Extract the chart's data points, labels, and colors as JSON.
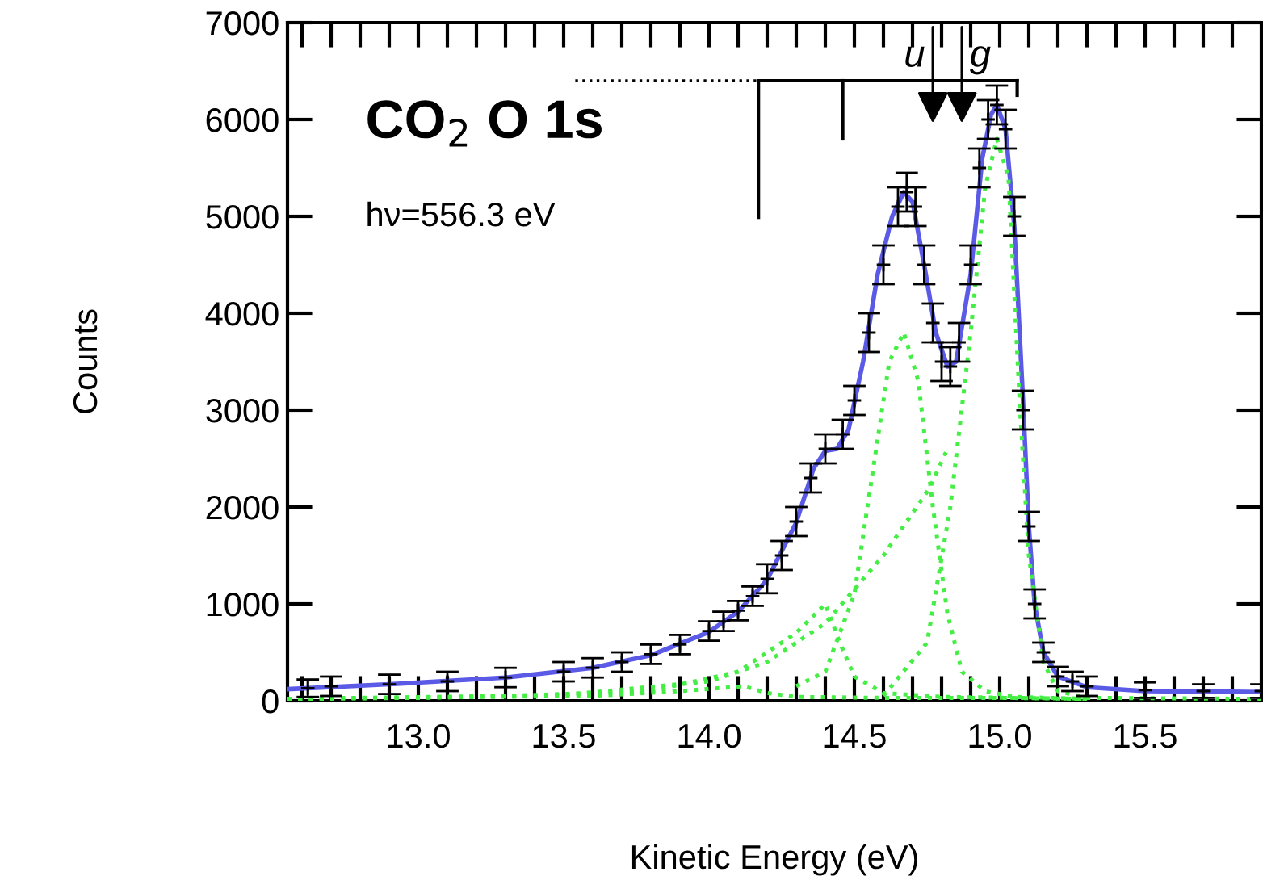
{
  "chart_data": {
    "type": "line",
    "title": "CO$_{2}$ O 1s",
    "xlabel": "Kinetic Energy (eV)",
    "ylabel": "Counts",
    "annotations": [
      "hν=556.3 eV",
      "u",
      "g"
    ],
    "xlim": [
      12.55,
      15.9
    ],
    "ylim": [
      0,
      7000
    ],
    "xticks": [
      {
        "value": 12.6,
        "label": null
      },
      {
        "value": 12.7,
        "label": null
      },
      {
        "value": 12.8,
        "label": null
      },
      {
        "value": 12.9,
        "label": null
      },
      {
        "value": 13.0,
        "label": "13.0"
      },
      {
        "value": 13.1,
        "label": null
      },
      {
        "value": 13.2,
        "label": null
      },
      {
        "value": 13.3,
        "label": null
      },
      {
        "value": 13.4,
        "label": null
      },
      {
        "value": 13.5,
        "label": "13.5"
      },
      {
        "value": 13.6,
        "label": null
      },
      {
        "value": 13.7,
        "label": null
      },
      {
        "value": 13.8,
        "label": null
      },
      {
        "value": 13.9,
        "label": null
      },
      {
        "value": 14.0,
        "label": "14.0"
      },
      {
        "value": 14.1,
        "label": null
      },
      {
        "value": 14.2,
        "label": null
      },
      {
        "value": 14.3,
        "label": null
      },
      {
        "value": 14.4,
        "label": null
      },
      {
        "value": 14.5,
        "label": "14.5"
      },
      {
        "value": 14.6,
        "label": null
      },
      {
        "value": 14.7,
        "label": null
      },
      {
        "value": 14.8,
        "label": null
      },
      {
        "value": 14.9,
        "label": null
      },
      {
        "value": 15.0,
        "label": "15.0"
      },
      {
        "value": 15.1,
        "label": null
      },
      {
        "value": 15.2,
        "label": null
      },
      {
        "value": 15.3,
        "label": null
      },
      {
        "value": 15.4,
        "label": null
      },
      {
        "value": 15.5,
        "label": "15.5"
      },
      {
        "value": 15.6,
        "label": null
      },
      {
        "value": 15.7,
        "label": null
      },
      {
        "value": 15.8,
        "label": null
      }
    ],
    "yticks": [
      0,
      1000,
      2000,
      3000,
      4000,
      5000,
      6000,
      7000
    ],
    "grid": false,
    "legend": false,
    "series": [
      {
        "type": "scatter",
        "marker": "cross",
        "color": "#000000",
        "x": [
          12.62,
          12.7,
          12.9,
          13.1,
          13.3,
          13.5,
          13.6,
          13.7,
          13.8,
          13.9,
          14.0,
          14.05,
          14.1,
          14.15,
          14.2,
          14.25,
          14.3,
          14.35,
          14.4,
          14.46,
          14.5,
          14.55,
          14.6,
          14.65,
          14.68,
          14.71,
          14.74,
          14.77,
          14.8,
          14.83,
          14.86,
          14.9,
          14.93,
          14.96,
          14.99,
          15.02,
          15.05,
          15.08,
          15.1,
          15.12,
          15.15,
          15.2,
          15.25,
          15.3,
          15.5,
          15.7,
          15.9
        ],
        "values": [
          130,
          150,
          170,
          200,
          240,
          300,
          340,
          400,
          480,
          580,
          720,
          820,
          930,
          1080,
          1260,
          1500,
          1850,
          2300,
          2600,
          2750,
          3100,
          3800,
          4500,
          5100,
          5250,
          5100,
          4500,
          3900,
          3500,
          3450,
          3700,
          4500,
          5500,
          6000,
          6150,
          5900,
          5000,
          3000,
          1800,
          1000,
          500,
          250,
          200,
          150,
          110,
          100,
          100
        ],
        "errors": [
          90,
          100,
          100,
          100,
          100,
          100,
          100,
          100,
          100,
          100,
          100,
          100,
          100,
          100,
          150,
          150,
          150,
          150,
          150,
          150,
          150,
          200,
          200,
          200,
          200,
          200,
          200,
          200,
          200,
          200,
          200,
          200,
          200,
          200,
          200,
          200,
          200,
          200,
          150,
          150,
          100,
          100,
          100,
          100,
          80,
          70,
          70
        ]
      },
      {
        "line_style": "solid",
        "color": "#5a5ae6",
        "x": [
          12.55,
          12.9,
          13.3,
          13.6,
          13.8,
          14.0,
          14.1,
          14.2,
          14.3,
          14.36,
          14.4,
          14.44,
          14.48,
          14.53,
          14.58,
          14.63,
          14.67,
          14.7,
          14.74,
          14.78,
          14.82,
          14.85,
          14.9,
          14.94,
          14.97,
          14.99,
          15.02,
          15.05,
          15.08,
          15.1,
          15.12,
          15.15,
          15.2,
          15.3,
          15.5,
          15.9
        ],
        "values": [
          120,
          170,
          240,
          340,
          470,
          710,
          920,
          1250,
          1840,
          2400,
          2580,
          2600,
          2800,
          3500,
          4400,
          5000,
          5250,
          5150,
          4500,
          3800,
          3450,
          3500,
          4400,
          5600,
          6050,
          6150,
          5900,
          4900,
          3100,
          1800,
          1000,
          500,
          250,
          140,
          100,
          90
        ]
      },
      {
        "line_style": "dotted",
        "color": "#44ee44",
        "x": [
          14.6,
          14.75,
          14.83,
          14.9,
          14.95,
          14.99,
          15.03,
          15.07,
          15.1,
          15.15,
          15.2,
          15.3,
          15.9
        ],
        "values": [
          50,
          600,
          2000,
          3800,
          5300,
          5800,
          5400,
          3000,
          1500,
          400,
          100,
          30,
          20
        ]
      },
      {
        "line_style": "dotted",
        "color": "#44ee44",
        "x": [
          14.3,
          14.4,
          14.5,
          14.57,
          14.62,
          14.67,
          14.72,
          14.77,
          14.82,
          14.87,
          14.95,
          15.05,
          15.3
        ],
        "values": [
          150,
          300,
          1100,
          2500,
          3500,
          3800,
          3300,
          2000,
          900,
          300,
          100,
          40,
          20
        ]
      },
      {
        "line_style": "dotted",
        "color": "#44ee44",
        "x": [
          12.55,
          13.0,
          13.5,
          14.0,
          14.2,
          14.4,
          14.6,
          14.76,
          14.82
        ],
        "values": [
          20,
          30,
          60,
          200,
          400,
          800,
          1500,
          2200,
          2600
        ]
      },
      {
        "line_style": "dotted",
        "color": "#44ee44",
        "x": [
          12.55,
          13.3,
          13.8,
          14.1,
          14.3,
          14.4,
          14.45,
          14.5,
          14.6,
          14.8,
          15.3
        ],
        "values": [
          20,
          50,
          100,
          300,
          700,
          1000,
          600,
          250,
          80,
          40,
          20
        ]
      },
      {
        "line_style": "dotted",
        "color": "#44ee44",
        "x": [
          12.55,
          13.6,
          13.9,
          14.12,
          14.2,
          14.3,
          14.6,
          15.0,
          15.3
        ],
        "values": [
          20,
          50,
          100,
          150,
          80,
          40,
          30,
          30,
          20
        ]
      }
    ]
  }
}
